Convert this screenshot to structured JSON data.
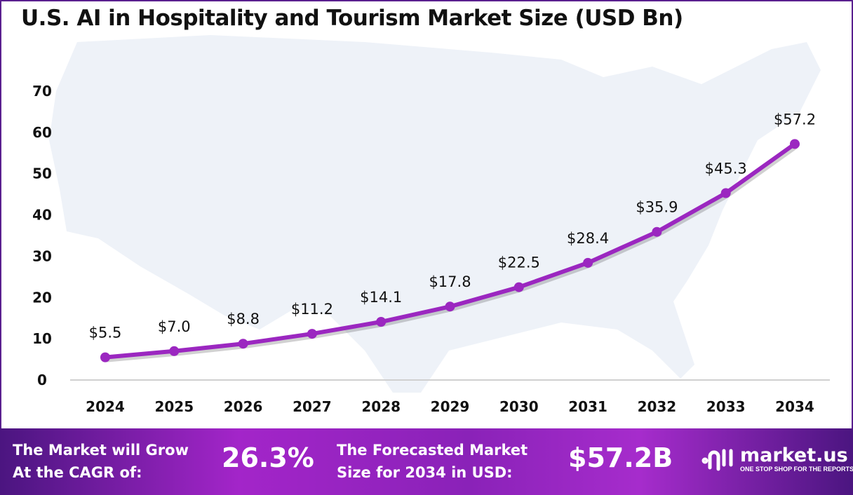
{
  "chart_data": {
    "type": "line",
    "title": "U.S. AI in Hospitality and Tourism Market Size (USD Bn)",
    "x": [
      "2024",
      "2025",
      "2026",
      "2027",
      "2028",
      "2029",
      "2030",
      "2031",
      "2032",
      "2033",
      "2034"
    ],
    "values": [
      5.5,
      7.0,
      8.8,
      11.2,
      14.1,
      17.8,
      22.5,
      28.4,
      35.9,
      45.3,
      57.2
    ],
    "data_labels": [
      "$5.5",
      "$7.0",
      "$8.8",
      "$11.2",
      "$14.1",
      "$17.8",
      "$22.5",
      "$28.4",
      "$35.9",
      "$45.3",
      "$57.2"
    ],
    "yticks": [
      0,
      10,
      20,
      30,
      40,
      50,
      60,
      70
    ],
    "ylim": [
      0,
      70
    ],
    "xlabel": "",
    "ylabel": "",
    "grid": false,
    "line_color": "#9b27c0"
  },
  "banner": {
    "cagr_label_1": "The Market will Grow",
    "cagr_label_2": "At the CAGR of:",
    "cagr_value": "26.3%",
    "forecast_label_1": "The Forecasted Market",
    "forecast_label_2": "Size for 2034 in USD:",
    "forecast_value": "$57.2B",
    "logo_name": "market.us",
    "logo_tagline": "ONE STOP SHOP FOR THE REPORTS"
  }
}
